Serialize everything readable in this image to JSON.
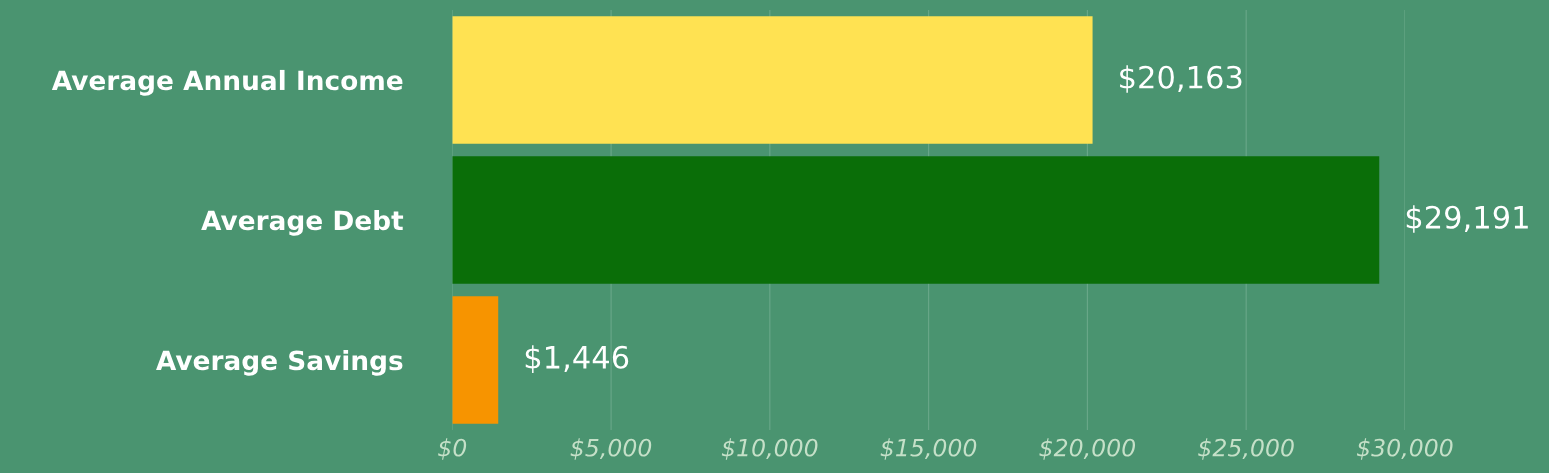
{
  "chart_data": {
    "type": "bar",
    "orientation": "horizontal",
    "categories": [
      "Average Annual Income",
      "Average Debt",
      "Average Savings"
    ],
    "values": [
      20163,
      29191,
      1446
    ],
    "colors": [
      "#ffe252",
      "#0a6e08",
      "#f79400"
    ],
    "value_labels": [
      "$20,163",
      "$29,191",
      "$1,446"
    ],
    "xlim": [
      0,
      30000
    ],
    "xticks": [
      {
        "value": 0,
        "label": "$0"
      },
      {
        "value": 5000,
        "label": "$5,000"
      },
      {
        "value": 10000,
        "label": "$10,000"
      },
      {
        "value": 15000,
        "label": "$15,000"
      },
      {
        "value": 20000,
        "label": "$20,000"
      },
      {
        "value": 25000,
        "label": "$25,000"
      },
      {
        "value": 30000,
        "label": "$30,000"
      }
    ],
    "grid": "x",
    "legend": false
  }
}
